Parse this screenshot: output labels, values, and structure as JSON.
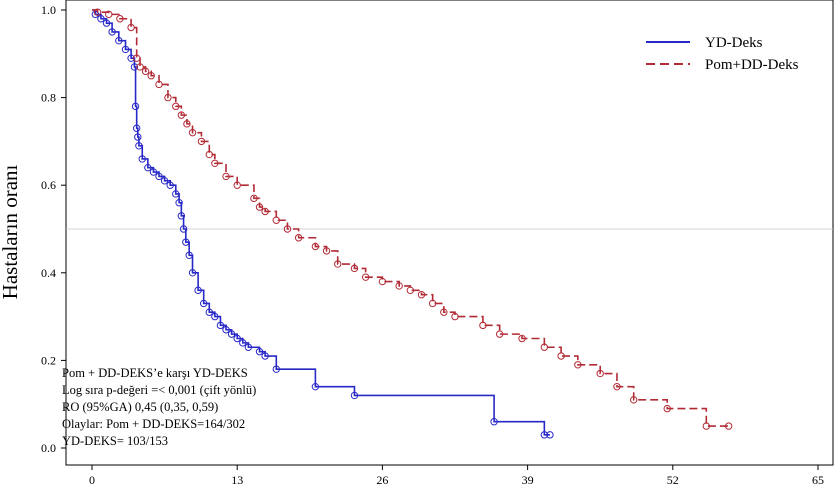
{
  "chart_data": {
    "type": "line",
    "title": "",
    "xlabel": "",
    "ylabel": "Hastaların oranı",
    "xlim": [
      0,
      65
    ],
    "ylim": [
      0,
      1.0
    ],
    "x_ticks": [
      "0",
      "13",
      "26",
      "39",
      "52",
      "65"
    ],
    "y_ticks": [
      "0.0",
      "0.2",
      "0.4",
      "0.6",
      "0.8",
      "1.0"
    ],
    "reference_line_y": 0.5,
    "legend_position": "top-right",
    "legend": [
      "YD-Deks",
      "Pom+DD-Deks"
    ],
    "series": [
      {
        "name": "YD-Deks",
        "color": "#2828c8",
        "style": "solid",
        "x": [
          0,
          0.3,
          0.8,
          1.3,
          1.8,
          2.4,
          3.0,
          3.5,
          3.8,
          3.9,
          4.0,
          4.1,
          4.2,
          4.5,
          5.0,
          5.5,
          6.0,
          6.5,
          7.0,
          7.5,
          7.8,
          8.0,
          8.2,
          8.4,
          8.7,
          9.0,
          9.5,
          10.0,
          10.5,
          11.0,
          11.5,
          12.0,
          12.5,
          13.0,
          13.5,
          14.0,
          15.0,
          15.5,
          16.5,
          20.0,
          23.5,
          36.0,
          40.5,
          41.0
        ],
        "y": [
          1.0,
          0.99,
          0.98,
          0.97,
          0.95,
          0.93,
          0.91,
          0.89,
          0.87,
          0.78,
          0.73,
          0.71,
          0.69,
          0.66,
          0.64,
          0.63,
          0.62,
          0.61,
          0.6,
          0.58,
          0.56,
          0.53,
          0.5,
          0.47,
          0.44,
          0.4,
          0.36,
          0.33,
          0.31,
          0.3,
          0.28,
          0.27,
          0.26,
          0.25,
          0.24,
          0.23,
          0.22,
          0.21,
          0.18,
          0.14,
          0.12,
          0.06,
          0.03,
          0.03
        ]
      },
      {
        "name": "Pom+DD-Deks",
        "color": "#b22a35",
        "style": "dashed",
        "x": [
          0,
          0.5,
          1.5,
          2.5,
          3.5,
          4.0,
          4.3,
          4.8,
          5.3,
          6.0,
          6.8,
          7.5,
          8.0,
          8.5,
          9.0,
          9.8,
          10.5,
          11.0,
          12.0,
          13.0,
          14.5,
          15.0,
          15.5,
          16.5,
          17.5,
          18.5,
          20.0,
          21.0,
          22.0,
          23.5,
          24.5,
          26.0,
          27.5,
          28.5,
          29.5,
          30.5,
          31.5,
          32.5,
          35.0,
          36.5,
          38.5,
          40.5,
          42.0,
          43.5,
          45.5,
          47.0,
          48.5,
          51.5,
          55.0,
          57.0
        ],
        "y": [
          1.0,
          0.995,
          0.99,
          0.98,
          0.96,
          0.89,
          0.87,
          0.86,
          0.85,
          0.83,
          0.8,
          0.78,
          0.76,
          0.74,
          0.72,
          0.7,
          0.67,
          0.65,
          0.62,
          0.6,
          0.57,
          0.55,
          0.54,
          0.52,
          0.5,
          0.48,
          0.46,
          0.45,
          0.42,
          0.41,
          0.39,
          0.38,
          0.37,
          0.36,
          0.35,
          0.33,
          0.31,
          0.3,
          0.28,
          0.26,
          0.25,
          0.23,
          0.21,
          0.19,
          0.17,
          0.14,
          0.11,
          0.09,
          0.05,
          0.05
        ]
      }
    ],
    "annotations": [
      "Pom + DD-DEKS’e karşı YD-DEKS",
      "Log sıra p-değeri =< 0,001 (çift yönlü)",
      "RO (95%GA) 0,45 (0,35, 0,59)",
      "Olaylar: Pom + DD-DEKS=164/302",
      "YD-DEKS= 103/153"
    ]
  }
}
